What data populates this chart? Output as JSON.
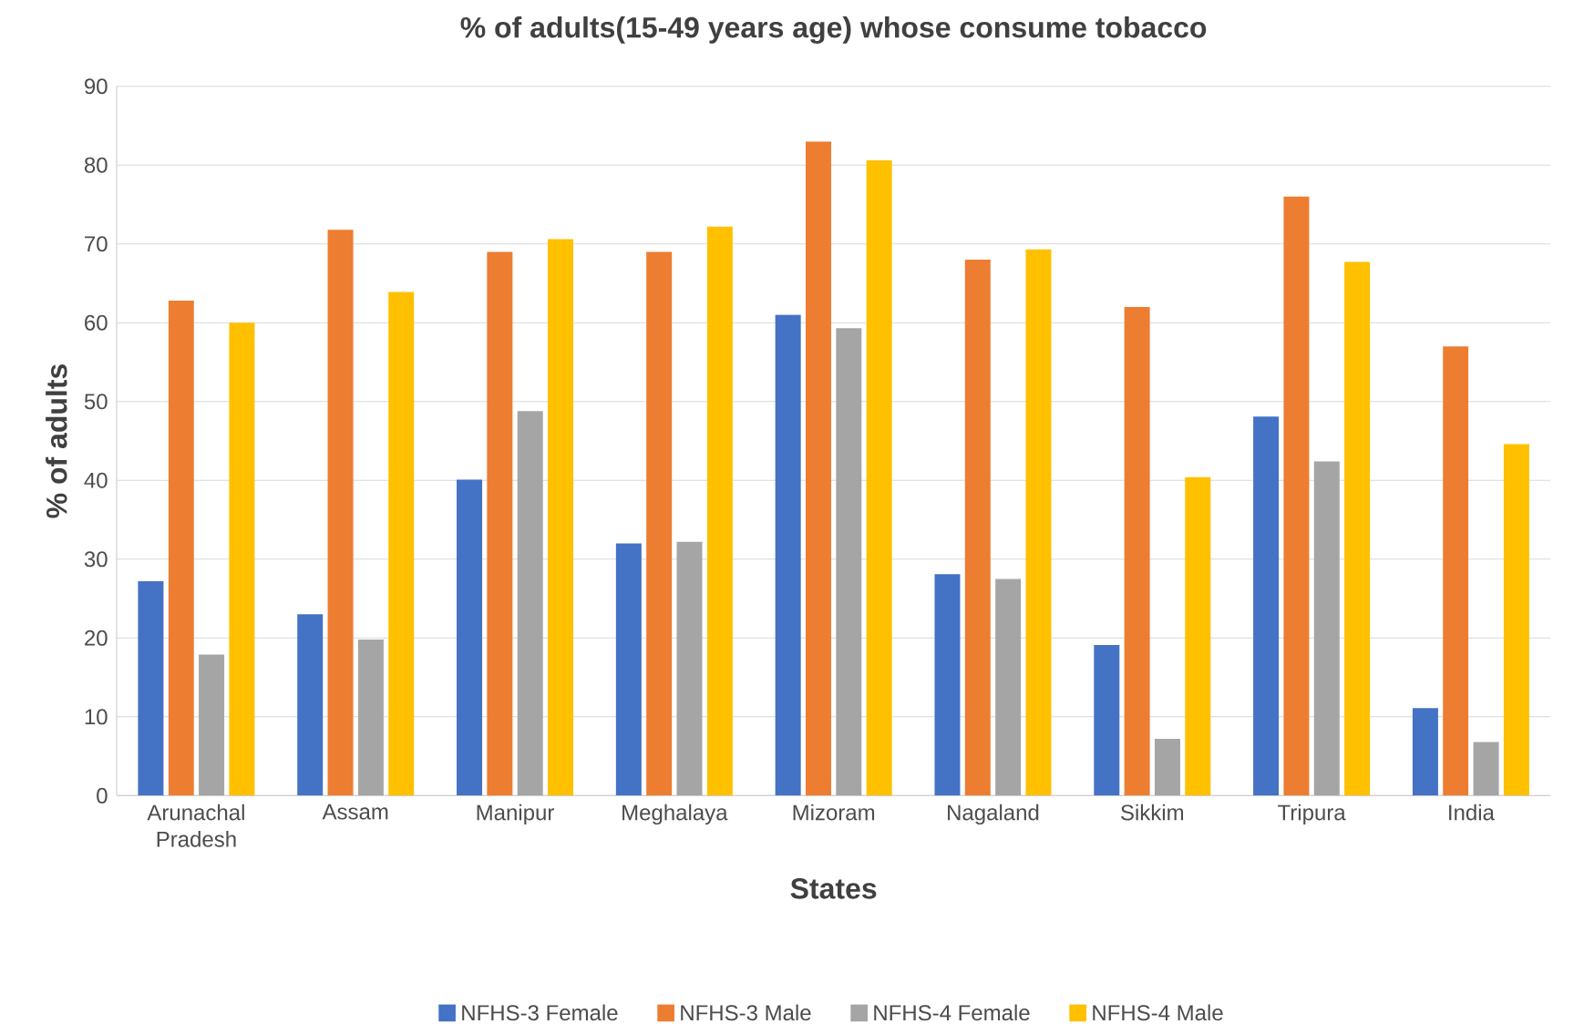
{
  "chart_data": {
    "type": "bar",
    "title": "% of adults(15-49 years age) whose consume tobacco",
    "xlabel": "States",
    "ylabel": "% of adults",
    "categories": [
      "Arunachal Pradesh",
      "Assam",
      "Manipur",
      "Meghalaya",
      "Mizoram",
      "Nagaland",
      "Sikkim",
      "Tripura",
      "India"
    ],
    "series": [
      {
        "name": "NFHS-3 Female",
        "color": "#4472c4",
        "values": [
          27.2,
          23,
          40.1,
          32,
          61,
          28.1,
          19.1,
          48.1,
          11.1
        ]
      },
      {
        "name": "NFHS-3 Male",
        "color": "#ed7d31",
        "values": [
          62.8,
          71.8,
          69,
          69,
          83,
          68,
          62,
          76,
          57
        ]
      },
      {
        "name": "NFHS-4 Female",
        "color": "#a5a5a5",
        "values": [
          17.9,
          19.8,
          48.8,
          32.2,
          59.3,
          27.5,
          7.2,
          42.4,
          6.8
        ]
      },
      {
        "name": "NFHS-4 Male",
        "color": "#ffc000",
        "values": [
          60,
          63.9,
          70.6,
          72.2,
          80.6,
          69.3,
          40.4,
          67.7,
          44.6
        ]
      }
    ],
    "ylim": [
      0,
      90
    ],
    "yticks": [
      0,
      10,
      20,
      30,
      40,
      50,
      60,
      70,
      80,
      90
    ],
    "grid": "y",
    "legend": "bottom"
  }
}
